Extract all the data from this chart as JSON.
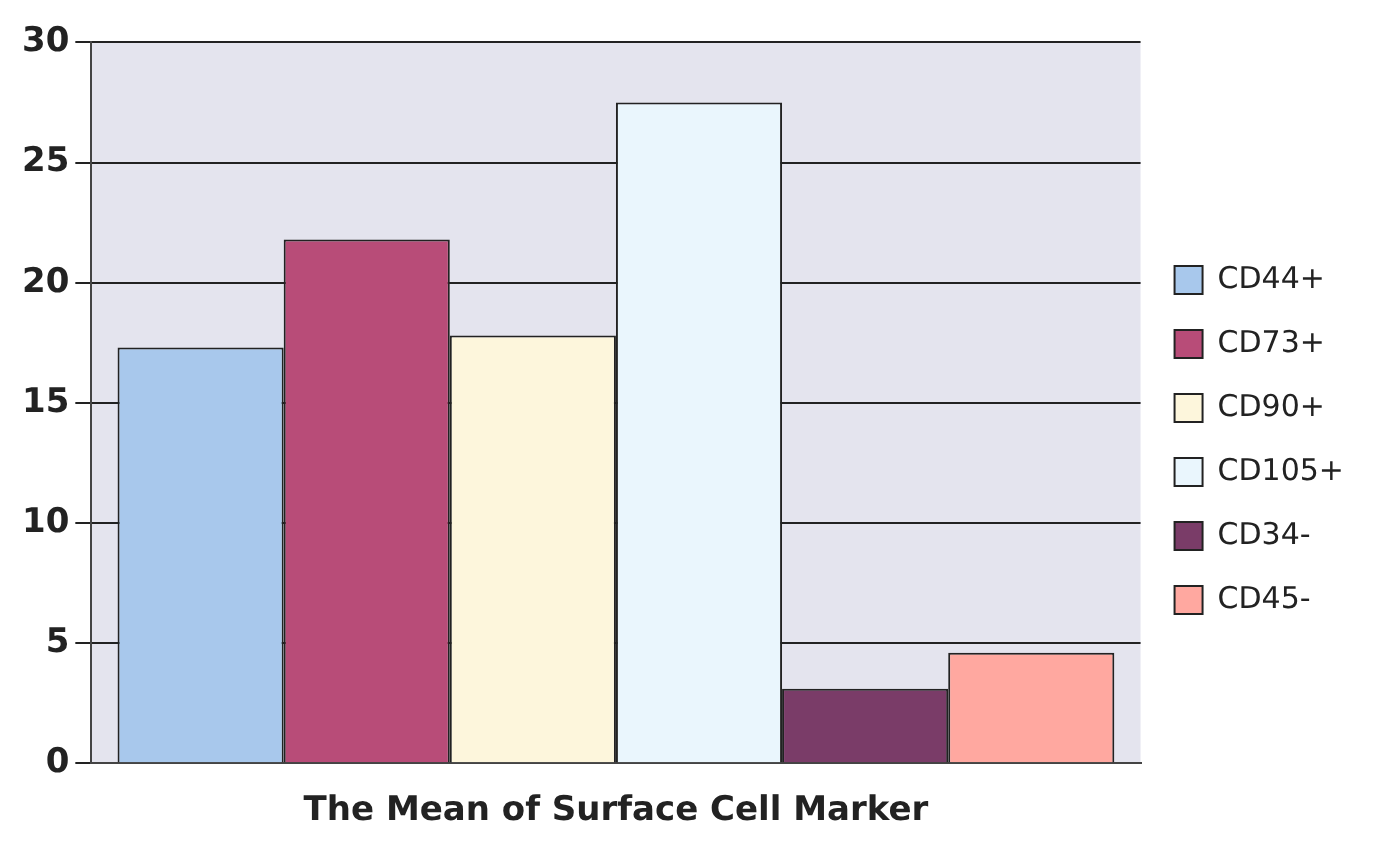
{
  "chart_data": {
    "type": "bar",
    "xlabel": "The Mean of Surface Cell Marker",
    "categories": [
      null
    ],
    "series": [
      {
        "name": "CD44+",
        "color": "#a8c8ec",
        "values": [
          17.3
        ]
      },
      {
        "name": "CD73+",
        "color": "#b84c78",
        "values": [
          21.8
        ]
      },
      {
        "name": "CD90+",
        "color": "#fdf6dc",
        "values": [
          17.8
        ]
      },
      {
        "name": "CD105+",
        "color": "#eaf6fd",
        "values": [
          27.5
        ]
      },
      {
        "name": "CD34-",
        "color": "#7a3c68",
        "values": [
          3.1
        ]
      },
      {
        "name": "CD45-",
        "color": "#ffa8a0",
        "values": [
          4.6
        ]
      }
    ],
    "ylim": [
      0,
      30
    ],
    "yticks": [
      0,
      5,
      10,
      15,
      20,
      25,
      30
    ],
    "grid": "y",
    "legend": "right",
    "tick_labels": "y"
  }
}
